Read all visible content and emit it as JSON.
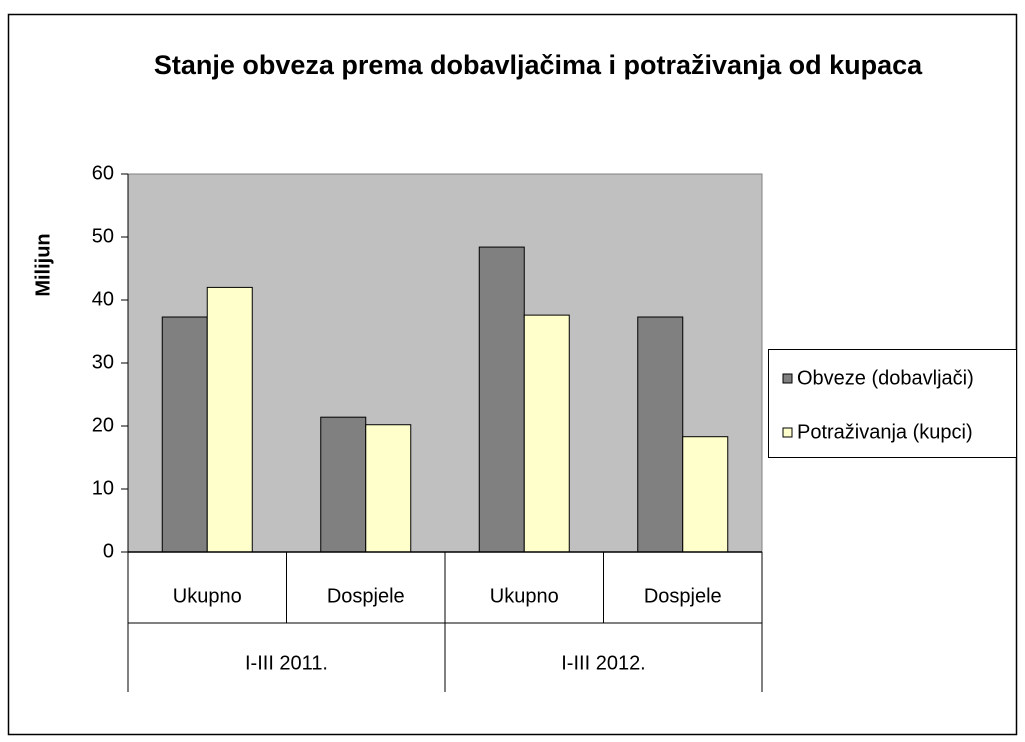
{
  "chart_data": {
    "type": "bar",
    "title": "Stanje obveza prema dobavljačima i potraživanja od kupaca",
    "y_label": "Milijun",
    "categories": [
      "Ukupno",
      "Dospjele",
      "Ukupno",
      "Dospjele"
    ],
    "groups": [
      "I-III 2011.",
      "I-III 2012."
    ],
    "series": [
      {
        "name": "Obveze (dobavljači)",
        "color": "#808080",
        "values": [
          37.3,
          21.4,
          48.4,
          37.3
        ]
      },
      {
        "name": "Potraživanja (kupci)",
        "color": "#ffffcc",
        "values": [
          42.0,
          20.2,
          37.6,
          18.3
        ]
      }
    ],
    "ylim": [
      0,
      60
    ],
    "yticks": [
      0,
      10,
      20,
      30,
      40,
      50,
      60
    ],
    "grid": false,
    "plot_background": "#c0c0c0",
    "legend": "right"
  }
}
